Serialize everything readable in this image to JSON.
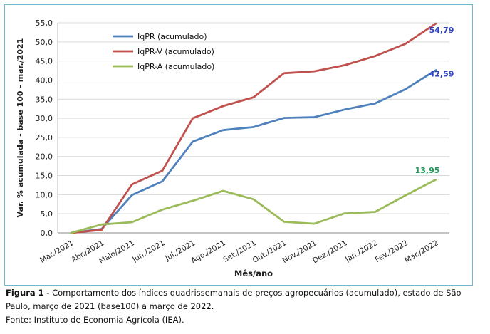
{
  "chart_data": {
    "type": "line",
    "xlabel": "Mês/ano",
    "ylabel": "Var. % acumulada - base 100 - mar./2021",
    "ylim": [
      0,
      55
    ],
    "ytick_step": 5,
    "grid": true,
    "legend_position": "top-left",
    "categories": [
      "Mar./2021",
      "Abr./2021",
      "Maio/2021",
      "Jun./2021",
      "Jul./2021",
      "Ago./2021",
      "Set./2021",
      "Out./2021",
      "Nov./2021",
      "Dez./2021",
      "Jan./2022",
      "Fev./2022",
      "Mar./2022"
    ],
    "series": [
      {
        "name": "IqPR (acumulado)",
        "color": "#4f81bd",
        "values": [
          0.0,
          1.0,
          9.9,
          13.5,
          23.9,
          26.9,
          27.7,
          30.1,
          30.3,
          32.3,
          33.9,
          37.6,
          42.59
        ],
        "end_label": "42,59",
        "end_label_color": "#2b3fc4"
      },
      {
        "name": "IqPR-V  (acumulado)",
        "color": "#c0504d",
        "values": [
          0.0,
          0.8,
          12.7,
          16.3,
          30.0,
          33.2,
          35.5,
          41.8,
          42.3,
          43.9,
          46.3,
          49.5,
          54.79
        ],
        "end_label": "54,79",
        "end_label_color": "#2b3fc4"
      },
      {
        "name": "IqPR-A  (acumulado)",
        "color": "#9bbb59",
        "values": [
          0.0,
          2.2,
          2.8,
          6.1,
          8.4,
          11.0,
          8.8,
          2.9,
          2.4,
          5.1,
          5.5,
          9.8,
          13.95
        ],
        "end_label": "13,95",
        "end_label_color": "#1e9a5a"
      }
    ]
  },
  "caption": {
    "figure_label": "Figura 1",
    "figure_text": " - Comportamento dos índices quadrissemanais de preços agropecuários (acumulado), estado de São Paulo, março de 2021 (base100) a março de 2022.",
    "source": "Fonte: Instituto de Economia Agrícola (IEA)."
  }
}
